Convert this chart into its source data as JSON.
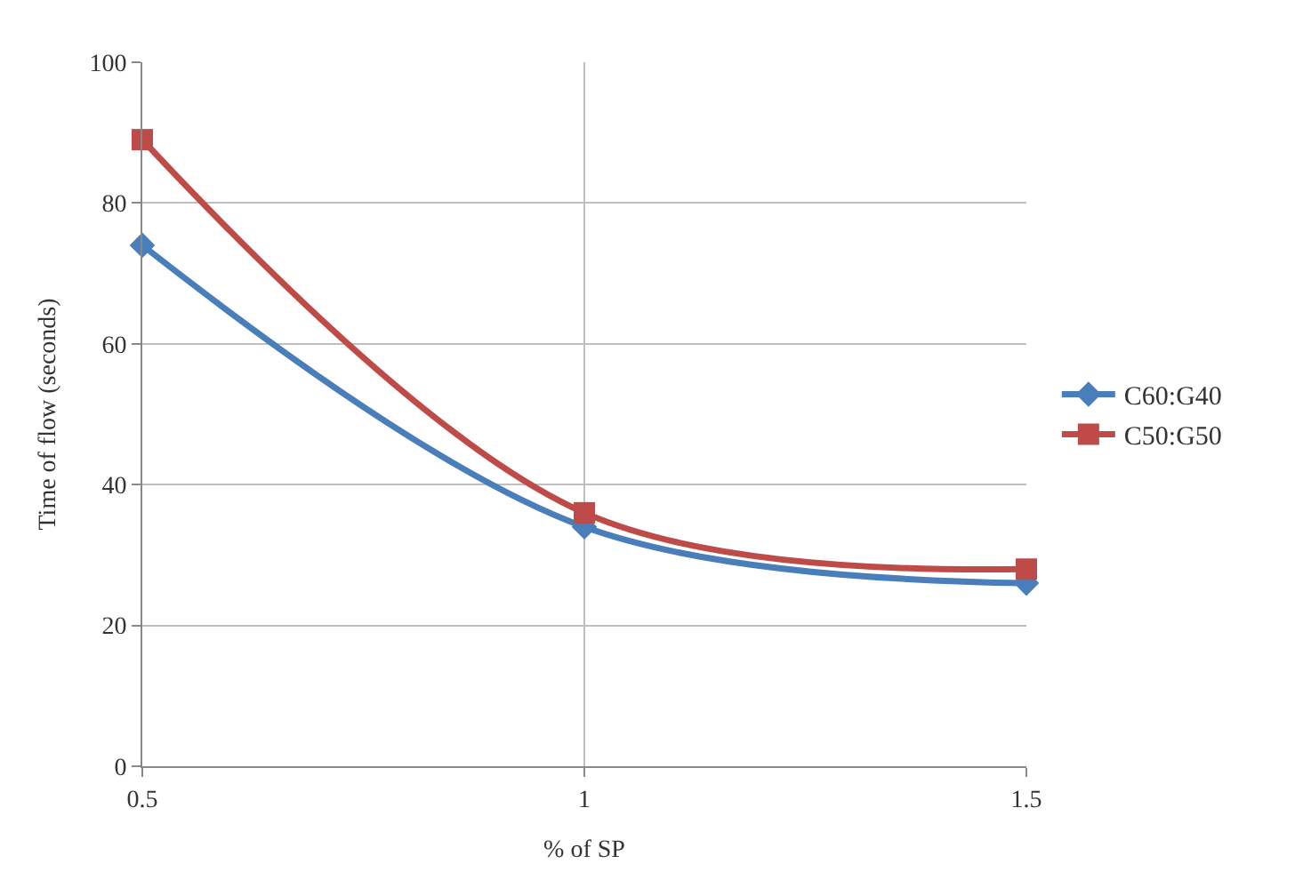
{
  "chart_data": {
    "type": "line",
    "xlabel": "% of SP",
    "ylabel": "Time of flow (seconds)",
    "x": [
      0.5,
      1,
      1.5
    ],
    "xlim": [
      0.5,
      1.5
    ],
    "xticks": [
      0.5,
      1,
      1.5
    ],
    "ylim": [
      0,
      100
    ],
    "yticks": [
      0,
      20,
      40,
      60,
      80,
      100
    ],
    "grid": true,
    "legend": "right",
    "series": [
      {
        "name": "C60:G40",
        "color": "#4a7ebb",
        "marker": "diamond",
        "values": [
          74,
          34,
          26
        ]
      },
      {
        "name": "C50:G50",
        "color": "#be4b48",
        "marker": "square",
        "values": [
          89,
          36,
          28
        ]
      }
    ]
  }
}
